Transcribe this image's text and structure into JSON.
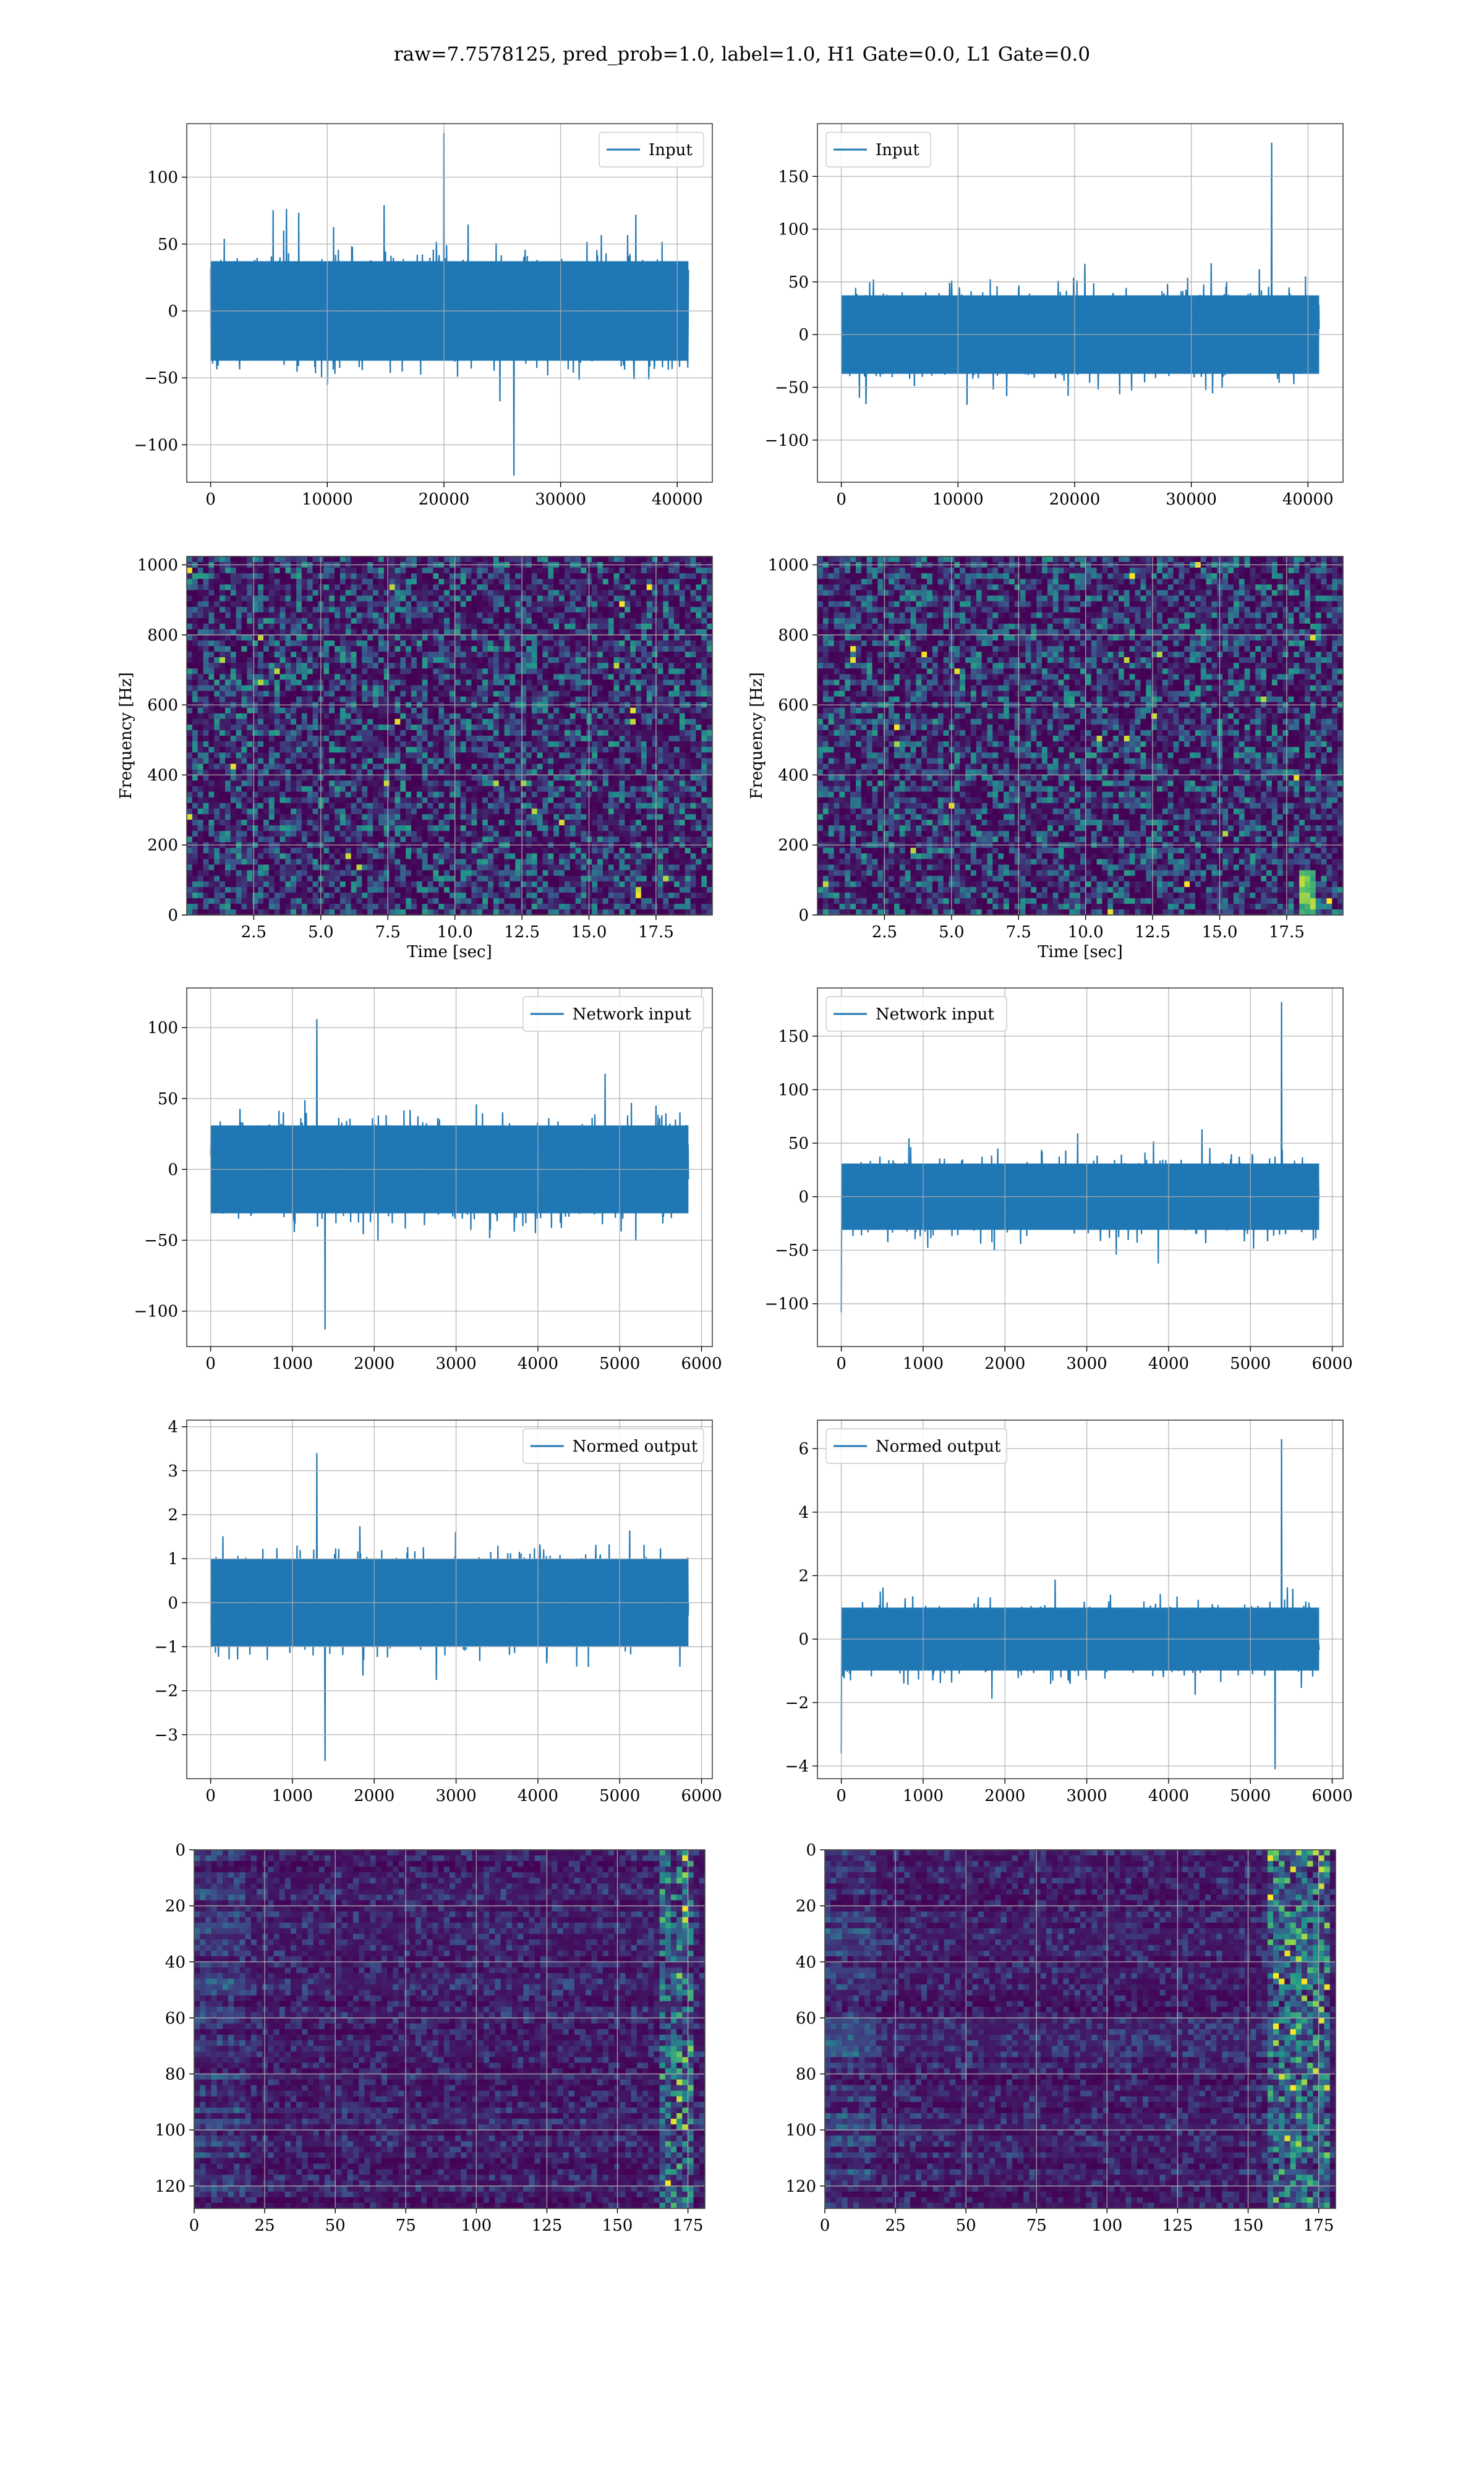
{
  "suptitle": "raw=7.7578125, pred_prob=1.0, label=1.0, H1 Gate=0.0, L1 Gate=0.0",
  "colors": {
    "line": "#1f77b4",
    "grid": "#b0b0b0",
    "axes": "#444444",
    "viridis_low": "#440154",
    "viridis_high": "#fde725"
  },
  "chart_data": [
    {
      "type": "line",
      "legend": "Input",
      "legend_loc": "upper right",
      "x_range": [
        0,
        40960
      ],
      "ylim": [
        -128,
        140
      ],
      "xticks": [
        0,
        10000,
        20000,
        30000,
        40000
      ],
      "yticks": [
        -100,
        -50,
        0,
        50,
        100
      ],
      "x_ticklabels": [
        "0",
        "10000",
        "20000",
        "30000",
        "40000"
      ],
      "y_ticklabels": [
        "−100",
        "−50",
        "0",
        "50",
        "100"
      ],
      "series": {
        "band": 60,
        "max": 133,
        "min": -123,
        "spikes": [
          [
            20000,
            133
          ],
          [
            26000,
            -123
          ]
        ]
      },
      "grid": true
    },
    {
      "type": "line",
      "legend": "Input",
      "legend_loc": "upper left",
      "x_range": [
        0,
        40960
      ],
      "ylim": [
        -140,
        200
      ],
      "xticks": [
        0,
        10000,
        20000,
        30000,
        40000
      ],
      "yticks": [
        -100,
        -50,
        0,
        50,
        100,
        150
      ],
      "x_ticklabels": [
        "0",
        "10000",
        "20000",
        "30000",
        "40000"
      ],
      "y_ticklabels": [
        "−100",
        "−50",
        "0",
        "50",
        "100",
        "150"
      ],
      "series": {
        "band": 60,
        "max": 182,
        "min": -122,
        "spikes": [
          [
            36900,
            182
          ]
        ]
      },
      "grid": true
    },
    {
      "type": "heatmap",
      "xlabel": "Time [sec]",
      "ylabel": "Frequency [Hz]",
      "xlim": [
        0,
        19.6
      ],
      "ylim": [
        0,
        1024
      ],
      "xticks": [
        2.5,
        5,
        7.5,
        10,
        12.5,
        15,
        17.5
      ],
      "yticks": [
        0,
        200,
        400,
        600,
        800,
        1000
      ],
      "x_ticklabels": [
        "2.5",
        "5.0",
        "7.5",
        "10.0",
        "12.5",
        "15.0",
        "17.5"
      ],
      "y_ticklabels": [
        "0",
        "200",
        "400",
        "600",
        "800",
        "1000"
      ],
      "colormap": "viridis",
      "grid": true
    },
    {
      "type": "heatmap",
      "xlabel": "Time [sec]",
      "ylabel": "Frequency [Hz]",
      "xlim": [
        0,
        19.6
      ],
      "ylim": [
        0,
        1024
      ],
      "xticks": [
        2.5,
        5,
        7.5,
        10,
        12.5,
        15,
        17.5
      ],
      "yticks": [
        0,
        200,
        400,
        600,
        800,
        1000
      ],
      "x_ticklabels": [
        "2.5",
        "5.0",
        "7.5",
        "10.0",
        "12.5",
        "15.0",
        "17.5"
      ],
      "y_ticklabels": [
        "0",
        "200",
        "400",
        "600",
        "800",
        "1000"
      ],
      "colormap": "viridis",
      "grid": true,
      "feature": {
        "time": 18.2,
        "freq_range": [
          0,
          150
        ]
      }
    },
    {
      "type": "line",
      "legend": "Network input",
      "legend_loc": "upper right",
      "x_range": [
        0,
        5840
      ],
      "ylim": [
        -125,
        128
      ],
      "xticks": [
        0,
        1000,
        2000,
        3000,
        4000,
        5000,
        6000
      ],
      "yticks": [
        -100,
        -50,
        0,
        50,
        100
      ],
      "x_ticklabels": [
        "0",
        "1000",
        "2000",
        "3000",
        "4000",
        "5000",
        "6000"
      ],
      "y_ticklabels": [
        "−100",
        "−50",
        "0",
        "50",
        "100"
      ],
      "series": {
        "band": 50,
        "max": 106,
        "min": -113,
        "spikes": [
          [
            1400,
            -113
          ],
          [
            1300,
            106
          ]
        ]
      },
      "grid": true
    },
    {
      "type": "line",
      "legend": "Network input",
      "legend_loc": "upper left",
      "x_range": [
        0,
        5840
      ],
      "ylim": [
        -140,
        195
      ],
      "xticks": [
        0,
        1000,
        2000,
        3000,
        4000,
        5000,
        6000
      ],
      "yticks": [
        -100,
        -50,
        0,
        50,
        100,
        150
      ],
      "x_ticklabels": [
        "0",
        "1000",
        "2000",
        "3000",
        "4000",
        "5000",
        "6000"
      ],
      "y_ticklabels": [
        "−100",
        "−50",
        "0",
        "50",
        "100",
        "150"
      ],
      "series": {
        "band": 50,
        "max": 182,
        "min": -113,
        "spikes": [
          [
            5380,
            182
          ],
          [
            0,
            -108
          ]
        ]
      },
      "grid": true
    },
    {
      "type": "line",
      "legend": "Normed output",
      "legend_loc": "upper right",
      "x_range": [
        0,
        5840
      ],
      "ylim": [
        -4.0,
        4.15
      ],
      "xticks": [
        0,
        1000,
        2000,
        3000,
        4000,
        5000,
        6000
      ],
      "yticks": [
        -3,
        -2,
        -1,
        0,
        1,
        2,
        3,
        4
      ],
      "x_ticklabels": [
        "0",
        "1000",
        "2000",
        "3000",
        "4000",
        "5000",
        "6000"
      ],
      "y_ticklabels": [
        "−3",
        "−2",
        "−1",
        "0",
        "1",
        "2",
        "3",
        "4"
      ],
      "series": {
        "band": 1.6,
        "max": 3.4,
        "min": -3.6,
        "spikes": [
          [
            1400,
            -3.6
          ],
          [
            1300,
            3.4
          ]
        ]
      },
      "grid": true
    },
    {
      "type": "line",
      "legend": "Normed output",
      "legend_loc": "upper left",
      "x_range": [
        0,
        5840
      ],
      "ylim": [
        -4.4,
        6.9
      ],
      "xticks": [
        0,
        1000,
        2000,
        3000,
        4000,
        5000,
        6000
      ],
      "yticks": [
        -4,
        -2,
        0,
        2,
        4,
        6
      ],
      "x_ticklabels": [
        "0",
        "1000",
        "2000",
        "3000",
        "4000",
        "5000",
        "6000"
      ],
      "y_ticklabels": [
        "−4",
        "−2",
        "0",
        "2",
        "4",
        "6"
      ],
      "series": {
        "band": 1.6,
        "max": 6.3,
        "min": -4.1,
        "spikes": [
          [
            5380,
            6.3
          ],
          [
            5300,
            -4.1
          ],
          [
            0,
            -3.6
          ]
        ]
      },
      "grid": true
    },
    {
      "type": "heatmap",
      "xlim": [
        0,
        181
      ],
      "ylim": [
        128,
        0
      ],
      "xticks": [
        0,
        25,
        50,
        75,
        100,
        125,
        150,
        175
      ],
      "yticks": [
        0,
        20,
        40,
        60,
        80,
        100,
        120
      ],
      "x_ticklabels": [
        "0",
        "25",
        "50",
        "75",
        "100",
        "125",
        "150",
        "175"
      ],
      "y_ticklabels": [
        "0",
        "20",
        "40",
        "60",
        "80",
        "100",
        "120"
      ],
      "colormap": "viridis",
      "grid": true,
      "feature": {
        "col_range": [
          163,
          176
        ]
      }
    },
    {
      "type": "heatmap",
      "xlim": [
        0,
        181
      ],
      "ylim": [
        128,
        0
      ],
      "xticks": [
        0,
        25,
        50,
        75,
        100,
        125,
        150,
        175
      ],
      "yticks": [
        0,
        20,
        40,
        60,
        80,
        100,
        120
      ],
      "x_ticklabels": [
        "0",
        "25",
        "50",
        "75",
        "100",
        "125",
        "150",
        "175"
      ],
      "y_ticklabels": [
        "0",
        "20",
        "40",
        "60",
        "80",
        "100",
        "120"
      ],
      "colormap": "viridis",
      "grid": true,
      "feature": {
        "col_range": [
          155,
          178
        ]
      }
    }
  ]
}
